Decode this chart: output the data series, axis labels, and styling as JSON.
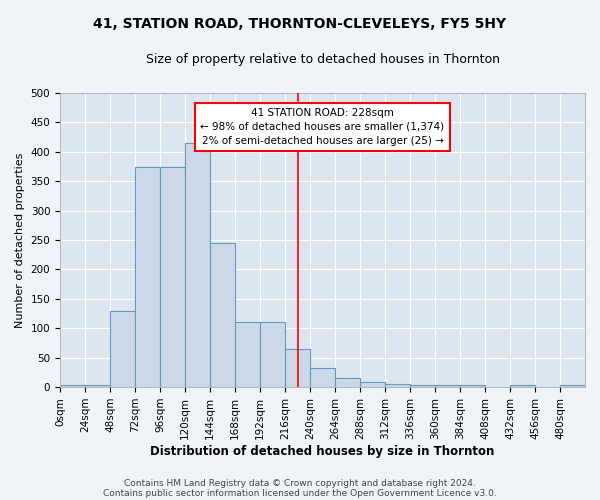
{
  "title": "41, STATION ROAD, THORNTON-CLEVELEYS, FY5 5HY",
  "subtitle": "Size of property relative to detached houses in Thornton",
  "xlabel": "Distribution of detached houses by size in Thornton",
  "ylabel": "Number of detached properties",
  "footnote1": "Contains HM Land Registry data © Crown copyright and database right 2024.",
  "footnote2": "Contains public sector information licensed under the Open Government Licence v3.0.",
  "bin_edges": [
    0,
    24,
    48,
    72,
    96,
    120,
    144,
    168,
    192,
    216,
    240,
    264,
    288,
    312,
    336,
    360,
    384,
    408,
    432,
    456,
    480,
    504
  ],
  "bar_heights": [
    3,
    3,
    130,
    375,
    375,
    415,
    245,
    110,
    110,
    65,
    33,
    15,
    8,
    5,
    3,
    3,
    3,
    1,
    3,
    1,
    3
  ],
  "bar_facecolor": "#ccd9ea",
  "bar_edgecolor": "#6699bb",
  "bar_linewidth": 0.8,
  "grid_color": "#ffffff",
  "bg_color": "#dce6f0",
  "fig_facecolor": "#f0f4f8",
  "property_line_x": 228,
  "property_line_color": "red",
  "annotation_line1": "41 STATION ROAD: 228sqm",
  "annotation_line2": "← 98% of detached houses are smaller (1,374)",
  "annotation_line3": "2% of semi-detached houses are larger (25) →",
  "ylim": [
    0,
    500
  ],
  "xlim": [
    0,
    504
  ],
  "yticks": [
    0,
    50,
    100,
    150,
    200,
    250,
    300,
    350,
    400,
    450,
    500
  ],
  "xtick_labels": [
    "0sqm",
    "24sqm",
    "48sqm",
    "72sqm",
    "96sqm",
    "120sqm",
    "144sqm",
    "168sqm",
    "192sqm",
    "216sqm",
    "240sqm",
    "264sqm",
    "288sqm",
    "312sqm",
    "336sqm",
    "360sqm",
    "384sqm",
    "408sqm",
    "432sqm",
    "456sqm",
    "480sqm"
  ],
  "title_fontsize": 10,
  "subtitle_fontsize": 9,
  "xlabel_fontsize": 8.5,
  "ylabel_fontsize": 8,
  "tick_fontsize": 7.5,
  "annot_fontsize": 7.5,
  "footnote_fontsize": 6.5
}
